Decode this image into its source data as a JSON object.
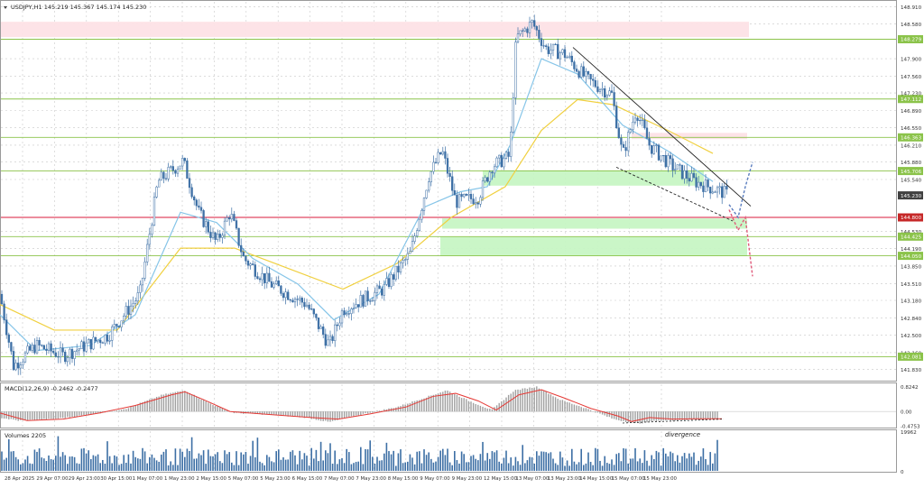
{
  "chart_header": "USDJPY,H1  145.219 145.367 145.174 145.230",
  "macd_label": "MACD(12,26,9) -0.2462 -0.2477",
  "volume_label": "Volumes 2205",
  "annotation": "divergence",
  "colors": {
    "grid": "#c8c8c8",
    "bull_candle": "#3d6fa5",
    "bear_candle": "#3d6fa5",
    "ma_fast": "#86c5e8",
    "ma_slow": "#f0d040",
    "level_line": "#8bc34a",
    "resistance_line": "#d81b3b",
    "zone_red": "#fde2e6",
    "zone_green": "#c7f5c4",
    "macd_hist": "#a0a0a0",
    "macd_signal": "#e53935",
    "volume_bar": "#3d6fa5",
    "tag_green": "#8bc34a",
    "tag_red": "#c62828",
    "tag_dark": "#404040",
    "forecast_up": "#5a7dbe",
    "forecast_down": "#e05a7a",
    "trendline": "#222222"
  },
  "chart_data": {
    "type": "candlestick",
    "price_axis": {
      "range": [
        141.63,
        149.01
      ],
      "tick_labels": [
        "148.910",
        "148.580",
        "147.900",
        "147.560",
        "147.230",
        "146.890",
        "146.550",
        "146.210",
        "145.880",
        "145.540",
        "144.530",
        "144.190",
        "143.850",
        "143.510",
        "143.180",
        "142.840",
        "142.500",
        "142.160",
        "141.830"
      ]
    },
    "price_tags": [
      {
        "value": "148.279",
        "style": "green"
      },
      {
        "value": "147.112",
        "style": "green"
      },
      {
        "value": "146.363",
        "style": "green"
      },
      {
        "value": "145.706",
        "style": "green"
      },
      {
        "value": "145.230",
        "style": "dark"
      },
      {
        "value": "144.800",
        "style": "red"
      },
      {
        "value": "144.425",
        "style": "green"
      },
      {
        "value": "144.050",
        "style": "green"
      },
      {
        "value": "142.081",
        "style": "green"
      }
    ],
    "level_lines": [
      148.279,
      147.112,
      146.363,
      145.706,
      144.425,
      144.05,
      142.081
    ],
    "resistance_line": 144.8,
    "zones": [
      {
        "color": "red",
        "from": 148.32,
        "to": 148.62
      },
      {
        "color": "red",
        "from": 146.33,
        "to": 146.45
      },
      {
        "color": "green",
        "from": 145.42,
        "to": 145.72
      },
      {
        "color": "green",
        "from": 144.58,
        "to": 144.78
      },
      {
        "color": "green",
        "from": 144.05,
        "to": 144.42
      }
    ],
    "time_labels": [
      "28 Apr 2025",
      "29 Apr 07:00",
      "29 Apr 23:00",
      "30 Apr 15:00",
      "1 May 07:00",
      "1 May 23:00",
      "2 May 15:00",
      "5 May 07:00",
      "5 May 23:00",
      "6 May 15:00",
      "7 May 07:00",
      "7 May 23:00",
      "8 May 15:00",
      "9 May 07:00",
      "9 May 23:00",
      "12 May 15:00",
      "13 May 07:00",
      "13 May 23:00",
      "14 May 15:00",
      "15 May 07:00",
      "15 May 23:00"
    ],
    "series": [
      {
        "name": "USDJPY,H1",
        "anchors": [
          [
            0,
            143.3
          ],
          [
            15,
            141.9
          ],
          [
            40,
            142.3
          ],
          [
            70,
            142.1
          ],
          [
            120,
            142.5
          ],
          [
            155,
            143.3
          ],
          [
            175,
            145.5
          ],
          [
            203,
            145.9
          ],
          [
            220,
            144.9
          ],
          [
            240,
            144.3
          ],
          [
            255,
            144.9
          ],
          [
            270,
            144.0
          ],
          [
            300,
            143.5
          ],
          [
            340,
            143.1
          ],
          [
            365,
            142.3
          ],
          [
            380,
            143.0
          ],
          [
            425,
            143.4
          ],
          [
            455,
            144.1
          ],
          [
            475,
            145.6
          ],
          [
            490,
            146.1
          ],
          [
            505,
            145.1
          ],
          [
            530,
            145.2
          ],
          [
            545,
            145.8
          ],
          [
            565,
            146.0
          ],
          [
            572,
            148.3
          ],
          [
            590,
            148.6
          ],
          [
            605,
            148.1
          ],
          [
            625,
            148.0
          ],
          [
            650,
            147.5
          ],
          [
            678,
            147.2
          ],
          [
            690,
            146.0
          ],
          [
            705,
            146.9
          ],
          [
            720,
            146.2
          ],
          [
            745,
            145.8
          ],
          [
            770,
            145.5
          ],
          [
            800,
            145.3
          ],
          [
            808,
            145.23
          ]
        ]
      }
    ],
    "ma_fast": [
      [
        0,
        142.9
      ],
      [
        40,
        142.2
      ],
      [
        100,
        142.3
      ],
      [
        150,
        142.9
      ],
      [
        200,
        144.9
      ],
      [
        240,
        144.7
      ],
      [
        280,
        144.0
      ],
      [
        330,
        143.5
      ],
      [
        370,
        142.8
      ],
      [
        420,
        143.3
      ],
      [
        470,
        145.0
      ],
      [
        510,
        145.3
      ],
      [
        540,
        145.4
      ],
      [
        565,
        146.2
      ],
      [
        600,
        147.9
      ],
      [
        640,
        147.6
      ],
      [
        690,
        146.6
      ],
      [
        740,
        146.1
      ],
      [
        790,
        145.5
      ]
    ],
    "ma_slow": [
      [
        0,
        143.1
      ],
      [
        60,
        142.6
      ],
      [
        130,
        142.6
      ],
      [
        200,
        144.2
      ],
      [
        260,
        144.2
      ],
      [
        320,
        143.8
      ],
      [
        380,
        143.4
      ],
      [
        440,
        143.9
      ],
      [
        500,
        144.8
      ],
      [
        560,
        145.4
      ],
      [
        600,
        146.5
      ],
      [
        640,
        147.1
      ],
      [
        680,
        147.0
      ],
      [
        740,
        146.5
      ],
      [
        790,
        146.05
      ]
    ],
    "forecast": {
      "up": [
        [
          808,
          145.05
        ],
        [
          818,
          144.8
        ],
        [
          826,
          145.4
        ],
        [
          834,
          145.88
        ]
      ],
      "down": [
        [
          808,
          144.95
        ],
        [
          818,
          144.55
        ],
        [
          826,
          144.8
        ],
        [
          834,
          143.65
        ]
      ]
    },
    "trendlines": [
      {
        "from": [
          635,
          148.12
        ],
        "to": [
          832,
          145.02
        ]
      },
      {
        "from": [
          683,
          145.78
        ],
        "to": [
          812,
          144.73
        ]
      }
    ],
    "macd": {
      "axis_labels": [
        "0.8242",
        "0.00",
        "-0.4753"
      ],
      "range": [
        -0.5,
        0.9
      ],
      "histogram_anchors": [
        [
          0,
          -0.2
        ],
        [
          20,
          -0.3
        ],
        [
          60,
          -0.25
        ],
        [
          100,
          -0.1
        ],
        [
          140,
          0.1
        ],
        [
          180,
          0.55
        ],
        [
          205,
          0.7
        ],
        [
          230,
          0.3
        ],
        [
          260,
          -0.05
        ],
        [
          300,
          -0.1
        ],
        [
          340,
          -0.2
        ],
        [
          365,
          -0.35
        ],
        [
          400,
          -0.1
        ],
        [
          440,
          0.15
        ],
        [
          470,
          0.45
        ],
        [
          495,
          0.7
        ],
        [
          520,
          0.35
        ],
        [
          545,
          0.05
        ],
        [
          570,
          0.7
        ],
        [
          595,
          0.82
        ],
        [
          620,
          0.4
        ],
        [
          650,
          0.1
        ],
        [
          680,
          -0.25
        ],
        [
          705,
          -0.4
        ],
        [
          730,
          -0.3
        ],
        [
          760,
          -0.28
        ],
        [
          800,
          -0.25
        ]
      ],
      "signal_anchors": [
        [
          0,
          -0.05
        ],
        [
          30,
          -0.3
        ],
        [
          70,
          -0.25
        ],
        [
          110,
          -0.05
        ],
        [
          150,
          0.2
        ],
        [
          190,
          0.55
        ],
        [
          205,
          0.65
        ],
        [
          225,
          0.4
        ],
        [
          255,
          0.0
        ],
        [
          300,
          -0.1
        ],
        [
          345,
          -0.2
        ],
        [
          375,
          -0.25
        ],
        [
          410,
          -0.08
        ],
        [
          450,
          0.15
        ],
        [
          480,
          0.5
        ],
        [
          505,
          0.6
        ],
        [
          530,
          0.35
        ],
        [
          550,
          0.05
        ],
        [
          575,
          0.55
        ],
        [
          600,
          0.72
        ],
        [
          625,
          0.45
        ],
        [
          655,
          0.1
        ],
        [
          685,
          -0.15
        ],
        [
          700,
          -0.33
        ],
        [
          720,
          -0.2
        ],
        [
          745,
          -0.25
        ],
        [
          770,
          -0.24
        ],
        [
          800,
          -0.24
        ]
      ],
      "divergence_line": {
        "from": [
          690,
          -0.38
        ],
        "to": [
          802,
          -0.25
        ]
      }
    },
    "volume": {
      "axis_labels": [
        "19962",
        "0"
      ],
      "range": [
        0,
        19962
      ],
      "seed": 7
    }
  }
}
